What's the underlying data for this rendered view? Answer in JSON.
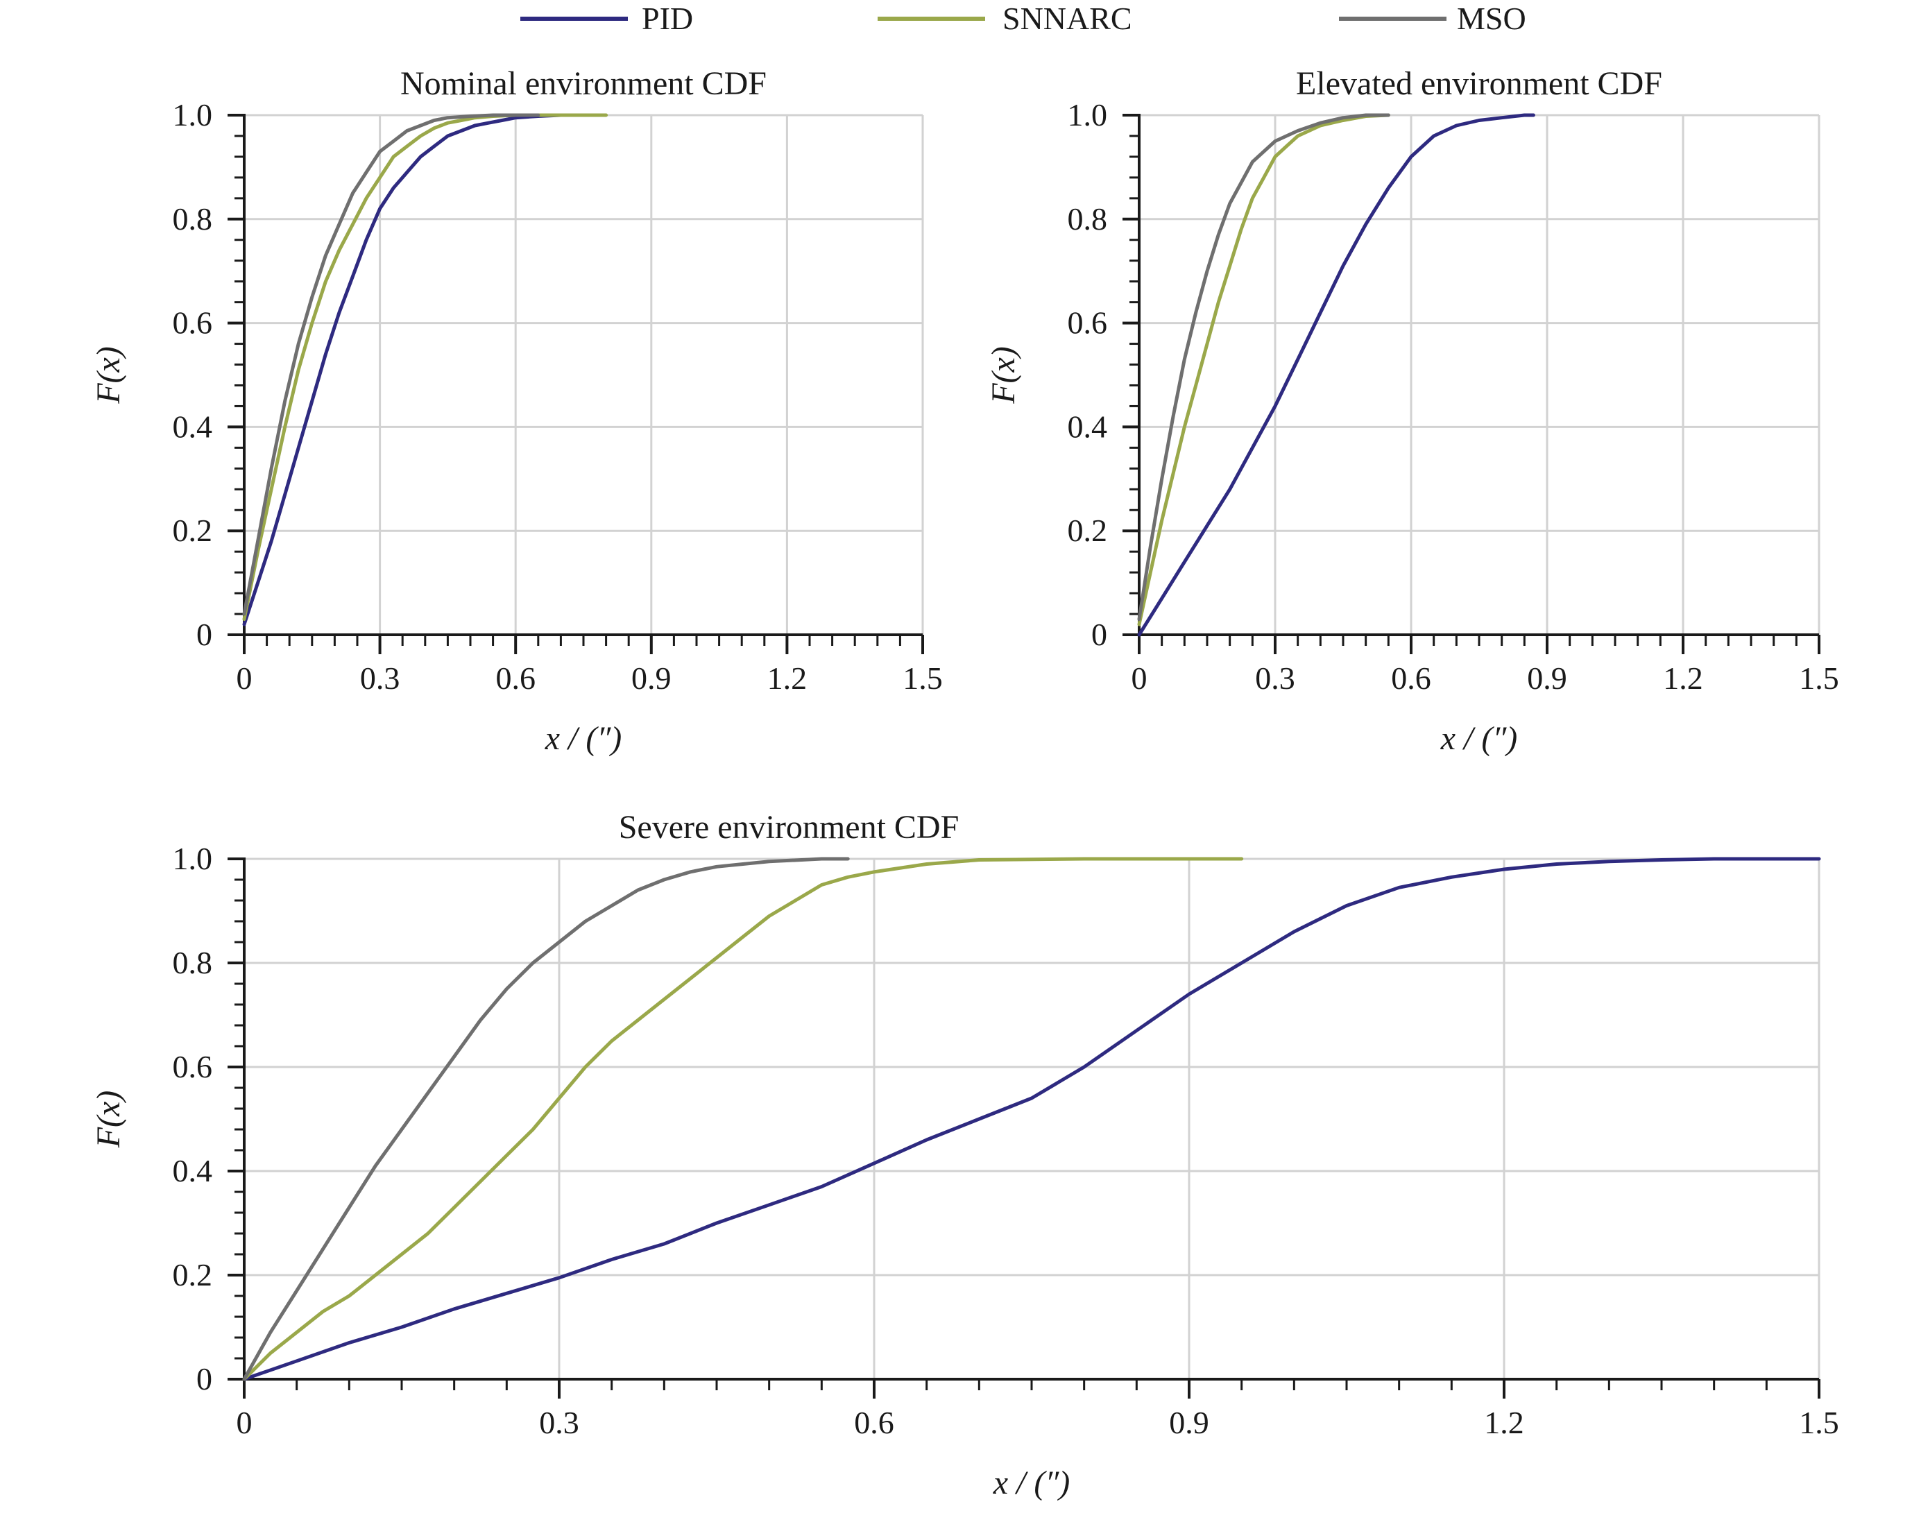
{
  "legend": [
    {
      "name": "PID",
      "color": "#2e2a80"
    },
    {
      "name": "SNNARC",
      "color": "#9aa84a"
    },
    {
      "name": "MSO",
      "color": "#6f6f6f"
    }
  ],
  "chart_data": [
    {
      "type": "line",
      "title": "Nominal environment CDF",
      "xlabel": "x / (″)",
      "ylabel": "F(x)",
      "xlim": [
        0,
        1.5
      ],
      "ylim": [
        0,
        1.0
      ],
      "x_ticks": [
        "0",
        "0.3",
        "0.6",
        "0.9",
        "1.2",
        "1.5"
      ],
      "y_ticks": [
        "0",
        "0.2",
        "0.4",
        "0.6",
        "0.8",
        "1.0"
      ],
      "grid": true,
      "series": [
        {
          "name": "PID",
          "color": "#2e2a80",
          "x": [
            0,
            0.03,
            0.06,
            0.09,
            0.12,
            0.15,
            0.18,
            0.21,
            0.24,
            0.27,
            0.3,
            0.33,
            0.36,
            0.39,
            0.42,
            0.45,
            0.48,
            0.51,
            0.54,
            0.57,
            0.6,
            0.65,
            0.7,
            0.75
          ],
          "y": [
            0.02,
            0.1,
            0.18,
            0.27,
            0.36,
            0.45,
            0.54,
            0.62,
            0.69,
            0.76,
            0.82,
            0.86,
            0.89,
            0.92,
            0.94,
            0.96,
            0.97,
            0.98,
            0.985,
            0.99,
            0.995,
            0.998,
            1.0,
            1.0
          ]
        },
        {
          "name": "SNNARC",
          "color": "#9aa84a",
          "x": [
            0,
            0.03,
            0.06,
            0.09,
            0.12,
            0.15,
            0.18,
            0.21,
            0.24,
            0.27,
            0.3,
            0.33,
            0.36,
            0.39,
            0.42,
            0.45,
            0.48,
            0.51,
            0.55,
            0.6,
            0.7,
            0.8
          ],
          "y": [
            0.03,
            0.16,
            0.28,
            0.4,
            0.51,
            0.6,
            0.68,
            0.74,
            0.79,
            0.84,
            0.88,
            0.92,
            0.94,
            0.96,
            0.975,
            0.985,
            0.99,
            0.995,
            0.998,
            1.0,
            1.0,
            1.0
          ]
        },
        {
          "name": "MSO",
          "color": "#6f6f6f",
          "x": [
            0,
            0.03,
            0.06,
            0.09,
            0.12,
            0.15,
            0.18,
            0.21,
            0.24,
            0.27,
            0.3,
            0.33,
            0.36,
            0.39,
            0.42,
            0.45,
            0.5,
            0.55,
            0.6,
            0.65
          ],
          "y": [
            0.04,
            0.18,
            0.32,
            0.45,
            0.56,
            0.65,
            0.73,
            0.79,
            0.85,
            0.89,
            0.93,
            0.95,
            0.97,
            0.98,
            0.99,
            0.995,
            0.998,
            1.0,
            1.0,
            1.0
          ]
        }
      ]
    },
    {
      "type": "line",
      "title": "Elevated environment CDF",
      "xlabel": "x / (″)",
      "ylabel": "F(x)",
      "xlim": [
        0,
        1.5
      ],
      "ylim": [
        0,
        1.0
      ],
      "x_ticks": [
        "0",
        "0.3",
        "0.6",
        "0.9",
        "1.2",
        "1.5"
      ],
      "y_ticks": [
        "0",
        "0.2",
        "0.4",
        "0.6",
        "0.8",
        "1.0"
      ],
      "grid": true,
      "series": [
        {
          "name": "PID",
          "color": "#2e2a80",
          "x": [
            0,
            0.05,
            0.1,
            0.15,
            0.2,
            0.25,
            0.3,
            0.35,
            0.4,
            0.45,
            0.5,
            0.55,
            0.6,
            0.65,
            0.7,
            0.75,
            0.8,
            0.85,
            0.87
          ],
          "y": [
            0,
            0.07,
            0.14,
            0.21,
            0.28,
            0.36,
            0.44,
            0.53,
            0.62,
            0.71,
            0.79,
            0.86,
            0.92,
            0.96,
            0.98,
            0.99,
            0.995,
            1.0,
            1.0
          ]
        },
        {
          "name": "SNNARC",
          "color": "#9aa84a",
          "x": [
            0,
            0.025,
            0.05,
            0.075,
            0.1,
            0.125,
            0.15,
            0.175,
            0.2,
            0.225,
            0.25,
            0.275,
            0.3,
            0.325,
            0.35,
            0.375,
            0.4,
            0.45,
            0.5,
            0.55
          ],
          "y": [
            0.02,
            0.12,
            0.22,
            0.31,
            0.4,
            0.48,
            0.56,
            0.64,
            0.71,
            0.78,
            0.84,
            0.88,
            0.92,
            0.94,
            0.96,
            0.97,
            0.98,
            0.99,
            0.998,
            1.0
          ]
        },
        {
          "name": "MSO",
          "color": "#6f6f6f",
          "x": [
            0,
            0.025,
            0.05,
            0.075,
            0.1,
            0.125,
            0.15,
            0.175,
            0.2,
            0.225,
            0.25,
            0.275,
            0.3,
            0.325,
            0.35,
            0.4,
            0.45,
            0.5,
            0.55
          ],
          "y": [
            0.03,
            0.17,
            0.3,
            0.42,
            0.53,
            0.62,
            0.7,
            0.77,
            0.83,
            0.87,
            0.91,
            0.93,
            0.95,
            0.96,
            0.97,
            0.985,
            0.995,
            1.0,
            1.0
          ]
        }
      ]
    },
    {
      "type": "line",
      "title": "Severe environment CDF",
      "xlabel": "x / (″)",
      "ylabel": "F(x)",
      "xlim": [
        0,
        1.5
      ],
      "ylim": [
        0,
        1.0
      ],
      "x_ticks": [
        "0",
        "0.3",
        "0.6",
        "0.9",
        "1.2",
        "1.5"
      ],
      "y_ticks": [
        "0",
        "0.2",
        "0.4",
        "0.6",
        "0.8",
        "1.0"
      ],
      "grid": true,
      "series": [
        {
          "name": "PID",
          "color": "#2e2a80",
          "x": [
            0,
            0.05,
            0.1,
            0.15,
            0.2,
            0.25,
            0.3,
            0.35,
            0.4,
            0.45,
            0.5,
            0.55,
            0.6,
            0.65,
            0.7,
            0.75,
            0.8,
            0.85,
            0.9,
            0.95,
            1.0,
            1.05,
            1.1,
            1.15,
            1.2,
            1.25,
            1.3,
            1.35,
            1.4,
            1.5
          ],
          "y": [
            0,
            0.035,
            0.07,
            0.1,
            0.135,
            0.165,
            0.195,
            0.23,
            0.26,
            0.3,
            0.335,
            0.37,
            0.415,
            0.46,
            0.5,
            0.54,
            0.6,
            0.67,
            0.74,
            0.8,
            0.86,
            0.91,
            0.945,
            0.965,
            0.98,
            0.99,
            0.995,
            0.998,
            1.0,
            1.0
          ]
        },
        {
          "name": "SNNARC",
          "color": "#9aa84a",
          "x": [
            0,
            0.025,
            0.05,
            0.075,
            0.1,
            0.125,
            0.15,
            0.175,
            0.2,
            0.225,
            0.25,
            0.275,
            0.3,
            0.325,
            0.35,
            0.375,
            0.4,
            0.425,
            0.45,
            0.475,
            0.5,
            0.525,
            0.55,
            0.575,
            0.6,
            0.65,
            0.7,
            0.8,
            0.95
          ],
          "y": [
            0,
            0.05,
            0.09,
            0.13,
            0.16,
            0.2,
            0.24,
            0.28,
            0.33,
            0.38,
            0.43,
            0.48,
            0.54,
            0.6,
            0.65,
            0.69,
            0.73,
            0.77,
            0.81,
            0.85,
            0.89,
            0.92,
            0.95,
            0.965,
            0.975,
            0.99,
            0.998,
            1.0,
            1.0
          ]
        },
        {
          "name": "MSO",
          "color": "#6f6f6f",
          "x": [
            0,
            0.025,
            0.05,
            0.075,
            0.1,
            0.125,
            0.15,
            0.175,
            0.2,
            0.225,
            0.25,
            0.275,
            0.3,
            0.325,
            0.35,
            0.375,
            0.4,
            0.425,
            0.45,
            0.475,
            0.5,
            0.55,
            0.575
          ],
          "y": [
            0,
            0.09,
            0.17,
            0.25,
            0.33,
            0.41,
            0.48,
            0.55,
            0.62,
            0.69,
            0.75,
            0.8,
            0.84,
            0.88,
            0.91,
            0.94,
            0.96,
            0.975,
            0.985,
            0.99,
            0.995,
            1.0,
            1.0
          ]
        }
      ]
    }
  ]
}
